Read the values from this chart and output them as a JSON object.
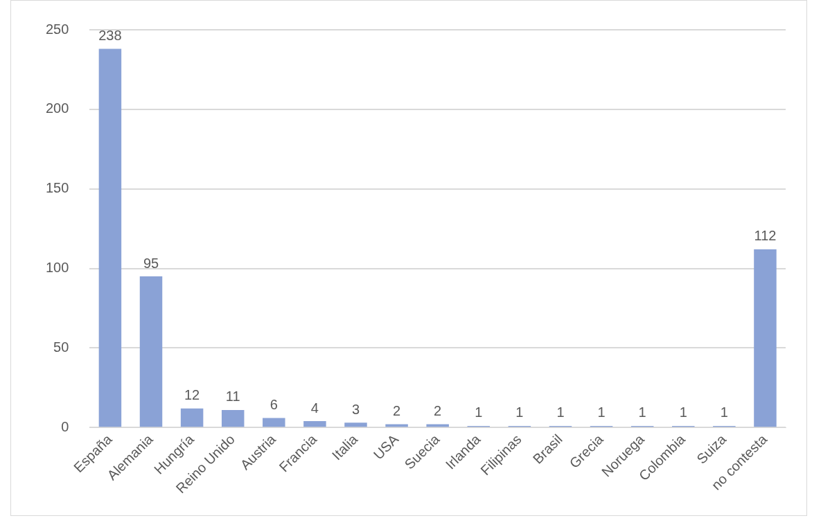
{
  "chart_data": {
    "type": "bar",
    "categories": [
      "España",
      "Alemania",
      "Hungría",
      "Reino Unido",
      "Austria",
      "Francia",
      "Italia",
      "USA",
      "Suecia",
      "Irlanda",
      "Filipinas",
      "Brasil",
      "Grecia",
      "Noruega",
      "Colombia",
      "Suiza",
      "no contesta"
    ],
    "values": [
      238,
      95,
      12,
      11,
      6,
      4,
      3,
      2,
      2,
      1,
      1,
      1,
      1,
      1,
      1,
      1,
      112
    ],
    "color": "#8aa2d6",
    "ylim": [
      0,
      250
    ],
    "yticks": [
      0,
      50,
      100,
      150,
      200,
      250
    ],
    "grid": "y",
    "legend": false,
    "data_labels": true
  }
}
